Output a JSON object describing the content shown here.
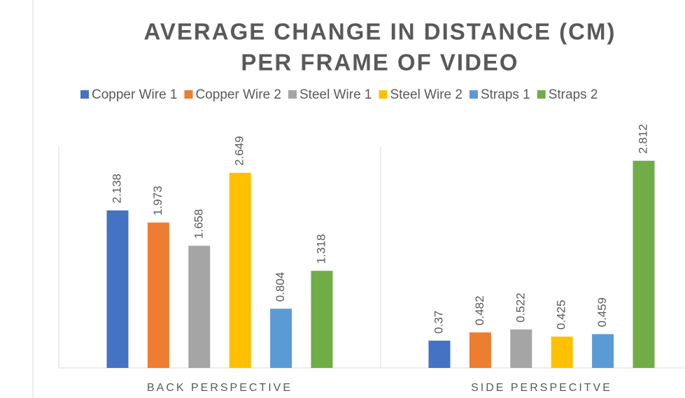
{
  "chart_data": {
    "type": "bar",
    "title": [
      "AVERAGE CHANGE IN DISTANCE (CM)",
      "PER FRAME OF VIDEO"
    ],
    "categories": [
      "BACK PERSPECTIVE",
      "SIDE PERSPECITVE"
    ],
    "series": [
      {
        "name": "Copper Wire 1",
        "color": "#4472c4",
        "values": [
          2.138,
          0.37
        ]
      },
      {
        "name": "Copper Wire 2",
        "color": "#ed7d31",
        "values": [
          1.973,
          0.482
        ]
      },
      {
        "name": "Steel Wire 1",
        "color": "#a5a5a5",
        "values": [
          1.658,
          0.522
        ]
      },
      {
        "name": "Steel Wire 2",
        "color": "#ffc000",
        "values": [
          2.649,
          0.425
        ]
      },
      {
        "name": "Straps 1",
        "color": "#5b9bd5",
        "values": [
          0.804,
          0.459
        ]
      },
      {
        "name": "Straps 2",
        "color": "#70ad47",
        "values": [
          1.318,
          2.812
        ]
      }
    ],
    "ylim": [
      0,
      3
    ],
    "legend": "top"
  }
}
